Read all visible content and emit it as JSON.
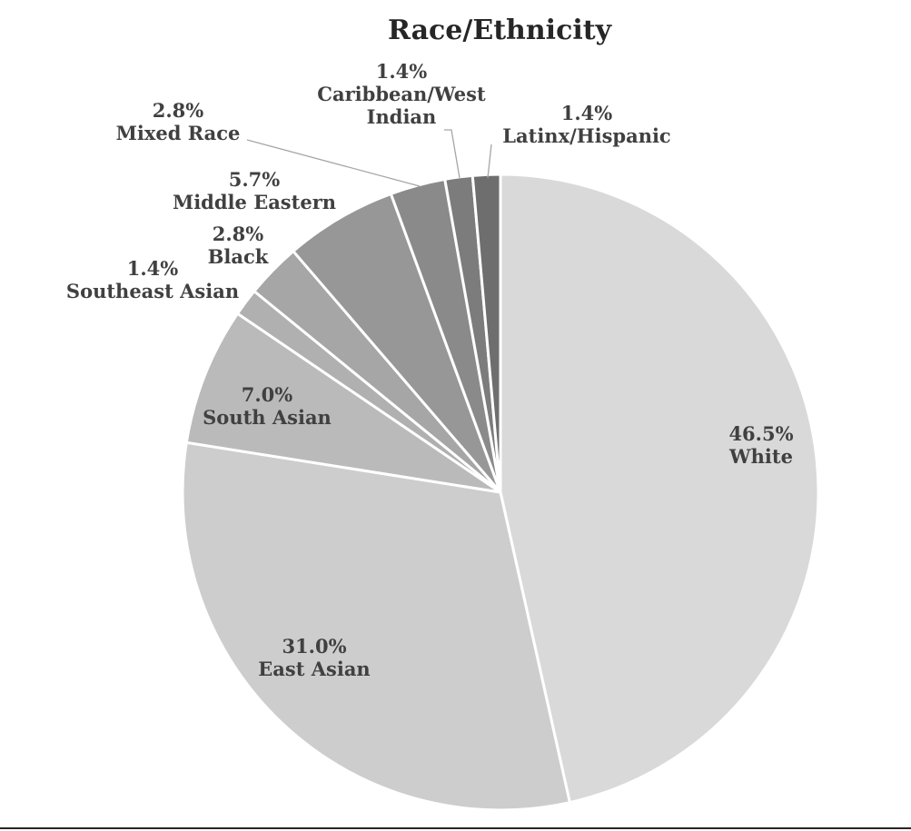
{
  "chart_data": {
    "type": "pie",
    "title": "Race/Ethnicity",
    "start": "12 o'clock",
    "direction": "clockwise",
    "slices": [
      {
        "name": "White",
        "value": 46.5,
        "label": "46.5%",
        "color": "#d9d9d9"
      },
      {
        "name": "East Asian",
        "value": 31.0,
        "label": "31.0%",
        "color": "#cdcdcd"
      },
      {
        "name": "South Asian",
        "value": 7.0,
        "label": "7.0%",
        "color": "#bababa"
      },
      {
        "name": "Southeast Asian",
        "value": 1.4,
        "label": "1.4%",
        "color": "#b0b0b0"
      },
      {
        "name": "Black",
        "value": 2.8,
        "label": "2.8%",
        "color": "#a6a6a6"
      },
      {
        "name": "Middle Eastern",
        "value": 5.7,
        "label": "5.7%",
        "color": "#979797"
      },
      {
        "name": "Mixed Race",
        "value": 2.8,
        "label": "2.8%",
        "color": "#8a8a8a"
      },
      {
        "name": "Caribbean/West Indian",
        "name_lines": [
          "Caribbean/West",
          "Indian"
        ],
        "value": 1.4,
        "label": "1.4%",
        "color": "#7c7c7c"
      },
      {
        "name": "Latinx/Hispanic",
        "value": 1.4,
        "label": "1.4%",
        "color": "#6e6e6e"
      }
    ]
  }
}
